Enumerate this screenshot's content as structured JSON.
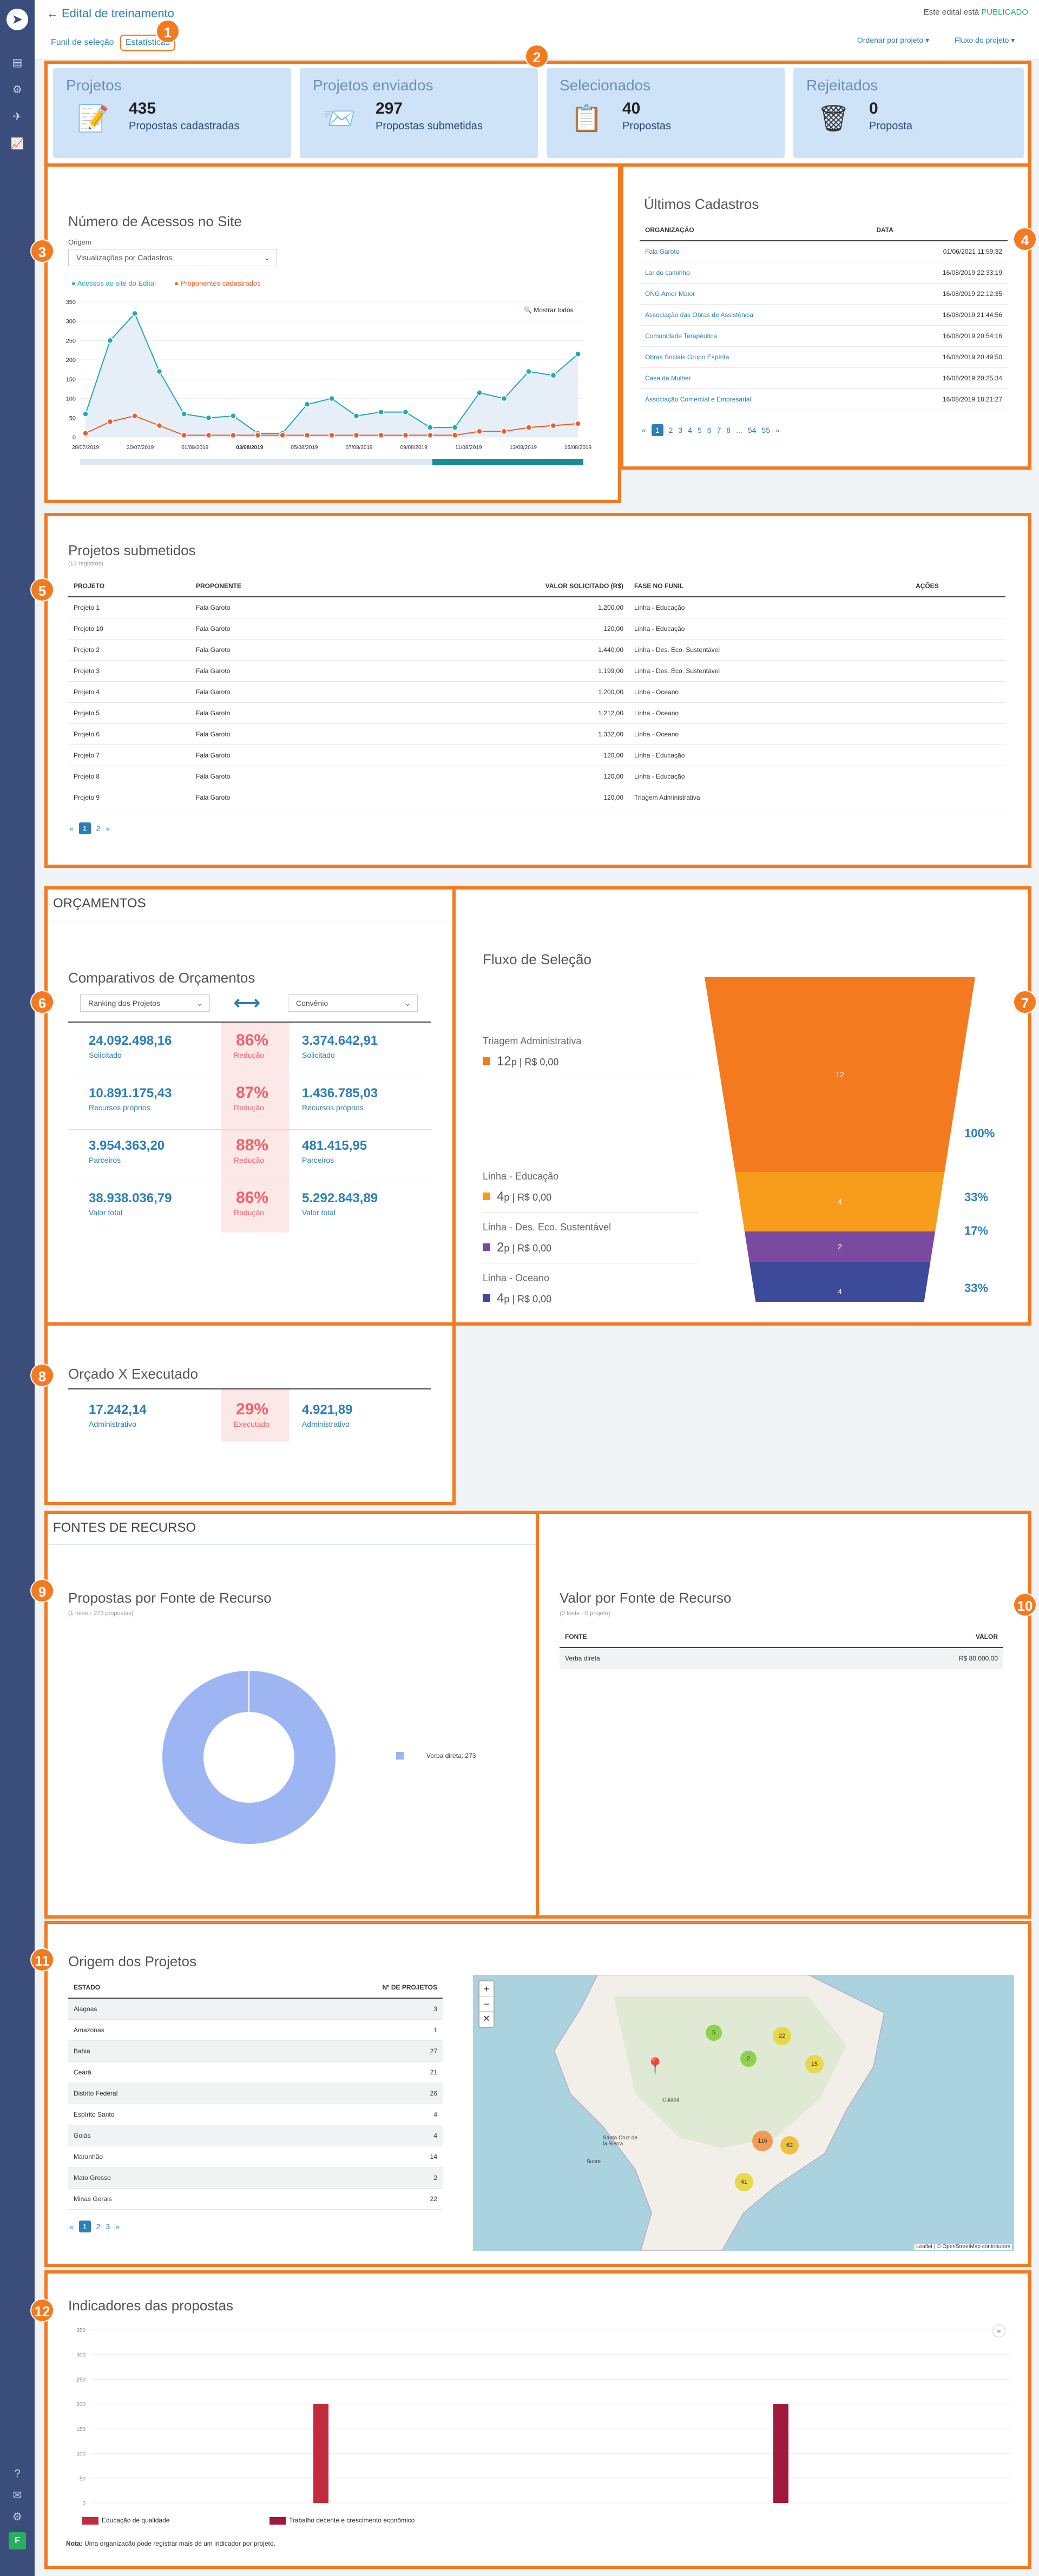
{
  "header": {
    "title": "Edital de treinamento",
    "status_prefix": "Este edital está",
    "status": "PUBLICADO",
    "tabs": [
      "Funil de seleção",
      "Estatísticas"
    ],
    "order_label": "Ordenar por projeto",
    "flow_label": "Fluxo do projeto"
  },
  "markers": [
    "1",
    "2",
    "3",
    "4",
    "5",
    "6",
    "7",
    "8",
    "9",
    "10",
    "11",
    "12"
  ],
  "cards": [
    {
      "title": "Projetos",
      "value": "435",
      "label": "Propostas cadastradas"
    },
    {
      "title": "Projetos enviados",
      "value": "297",
      "label": "Propostas submetidas"
    },
    {
      "title": "Selecionados",
      "value": "40",
      "label": "Propostas"
    },
    {
      "title": "Rejeitados",
      "value": "0",
      "label": "Proposta"
    }
  ],
  "access": {
    "title": "Número de Acessos no Site",
    "origin_label": "Origem",
    "origin_value": "Visualizações por Cadastros",
    "legend": [
      "Acessos ao site do Edital",
      "Proponentes cadastrados"
    ],
    "show_all": "Mostrar todos",
    "yticks": [
      "350",
      "300",
      "250",
      "200",
      "150",
      "100",
      "50",
      "0"
    ],
    "xticks": [
      "28/07/2019",
      "30/07/2019",
      "01/08/2019",
      "03/08/2019",
      "05/08/2019",
      "07/08/2019",
      "09/08/2019",
      "11/08/2019",
      "13/08/2019",
      "15/08/2019"
    ]
  },
  "chart_data": {
    "type": "line",
    "x_start": "28/07/2019",
    "x_end": "15/08/2019",
    "series": [
      {
        "name": "Acessos ao site do Edital",
        "values": [
          60,
          250,
          320,
          170,
          60,
          50,
          55,
          10,
          10,
          85,
          100,
          55,
          65,
          65,
          25,
          25,
          115,
          100,
          170,
          160,
          215
        ]
      },
      {
        "name": "Proponentes cadastrados",
        "values": [
          10,
          40,
          55,
          30,
          5,
          5,
          5,
          5,
          5,
          5,
          5,
          5,
          5,
          5,
          5,
          5,
          15,
          15,
          25,
          30,
          35
        ]
      }
    ],
    "ylim": [
      0,
      350
    ]
  },
  "ultimos": {
    "title": "Últimos Cadastros",
    "cols": [
      "ORGANIZAÇÃO",
      "DATA"
    ],
    "rows": [
      [
        "Fala Garoto",
        "01/06/2021 11:59:32"
      ],
      [
        "Lar do caminho",
        "16/08/2019 22:33:19"
      ],
      [
        "ONG Amor Maior",
        "16/08/2019 22:12:35"
      ],
      [
        "Associação das Obras de Assistência",
        "16/08/2019 21:44:56"
      ],
      [
        "Comunidade Terapêutica",
        "16/08/2019 20:54:16"
      ],
      [
        "Obras Sociais Grupo Espírita",
        "16/08/2019 20:49:50"
      ],
      [
        "Casa da Mulher",
        "16/08/2019 20:25:34"
      ],
      [
        "Associação Comercial e Empresarial",
        "16/08/2019 18:21:27"
      ]
    ],
    "pages": [
      "«",
      "1",
      "2",
      "3",
      "4",
      "5",
      "6",
      "7",
      "8",
      "...",
      "54",
      "55",
      "»"
    ]
  },
  "submetidos": {
    "title": "Projetos submetidos",
    "subtitle": "(13 registros)",
    "cols": [
      "PROJETO",
      "PROPONENTE",
      "VALOR SOLICITADO (R$)",
      "FASE NO FUNIL",
      "AÇÕES"
    ],
    "rows": [
      [
        "Projeto 1",
        "Fala Garoto",
        "1.200,00",
        "Linha - Educação"
      ],
      [
        "Projeto 10",
        "Fala Garoto",
        "120,00",
        "Linha - Educação"
      ],
      [
        "Projeto 2",
        "Fala Garoto",
        "1.440,00",
        "Linha - Des. Eco. Sustentável"
      ],
      [
        "Projeto 3",
        "Fala Garoto",
        "1.199,00",
        "Linha - Des. Eco. Sustentável"
      ],
      [
        "Projeto 4",
        "Fala Garoto",
        "1.200,00",
        "Linha - Oceano"
      ],
      [
        "Projeto 5",
        "Fala Garoto",
        "1.212,00",
        "Linha - Oceano"
      ],
      [
        "Projeto 6",
        "Fala Garoto",
        "1.332,00",
        "Linha - Oceano"
      ],
      [
        "Projeto 7",
        "Fala Garoto",
        "120,00",
        "Linha - Educação"
      ],
      [
        "Projeto 8",
        "Fala Garoto",
        "120,00",
        "Linha - Educação"
      ],
      [
        "Projeto 9",
        "Fala Garoto",
        "120,00",
        "Triagem Administrativa"
      ]
    ],
    "pages": [
      "«",
      "1",
      "2",
      "»"
    ]
  },
  "orcamentos": {
    "section": "ORÇAMENTOS",
    "title": "Comparativos de Orçamentos",
    "sel1": "Ranking dos Projetos",
    "sel2": "Convênio",
    "rows": [
      {
        "a": "24.092.498,16",
        "al": "Solicitado",
        "p": "86%",
        "pl": "Redução",
        "b": "3.374.642,91",
        "bl": "Solicitado"
      },
      {
        "a": "10.891.175,43",
        "al": "Recursos próprios",
        "p": "87%",
        "pl": "Redução",
        "b": "1.436.785,03",
        "bl": "Recursos próprios"
      },
      {
        "a": "3.954.363,20",
        "al": "Parceiros",
        "p": "88%",
        "pl": "Redução",
        "b": "481.415,95",
        "bl": "Parceiros"
      },
      {
        "a": "38.938.036,79",
        "al": "Valor total",
        "p": "86%",
        "pl": "Redução",
        "b": "5.292.843,89",
        "bl": "Valor total"
      }
    ]
  },
  "funil": {
    "title": "Fluxo de Seleção",
    "stages": [
      {
        "name": "Triagem Administrativa",
        "count": "12",
        "value": "R$ 0,00",
        "color": "#f47a20",
        "bar": "12",
        "pct": "100%"
      },
      {
        "name": "Linha - Educação",
        "count": "4",
        "value": "R$ 0,00",
        "color": "#f89c1c",
        "bar": "4",
        "pct": "33%"
      },
      {
        "name": "Linha - Des. Eco. Sustentável",
        "count": "2",
        "value": "R$ 0,00",
        "color": "#7a4aa0",
        "bar": "2",
        "pct": "17%"
      },
      {
        "name": "Linha - Oceano",
        "count": "4",
        "value": "R$ 0,00",
        "color": "#3d4a9a",
        "bar": "4",
        "pct": "33%"
      }
    ]
  },
  "orcado": {
    "title": "Orçado X Executado",
    "a": "17.242,14",
    "al": "Administrativo",
    "p": "29%",
    "pl": "Executado",
    "b": "4.921,89",
    "bl": "Administrativo"
  },
  "fontes": {
    "section": "FONTES DE RECURSO",
    "title": "Propostas por Fonte de Recurso",
    "subtitle": "(1 fonte - 273 propostas)",
    "legend": "Verba direta:",
    "legend_val": "273",
    "valor_title": "Valor por Fonte de Recurso",
    "valor_sub": "(0 fonte - 0 projeto)",
    "cols": [
      "FONTE",
      "VALOR"
    ],
    "rows": [
      [
        "Verba direta",
        "R$   80.000,00"
      ]
    ]
  },
  "origem": {
    "title": "Origem dos Projetos",
    "cols": [
      "ESTADO",
      "Nº DE PROJETOS"
    ],
    "rows": [
      [
        "Alagoas",
        "3"
      ],
      [
        "Amazonas",
        "1"
      ],
      [
        "Bahia",
        "27"
      ],
      [
        "Ceará",
        "21"
      ],
      [
        "Distrito Federal",
        "26"
      ],
      [
        "Espírito Santo",
        "4"
      ],
      [
        "Goiás",
        "4"
      ],
      [
        "Maranhão",
        "14"
      ],
      [
        "Mato Grosso",
        "2"
      ],
      [
        "Minas Gerais",
        "22"
      ]
    ],
    "pages": [
      "«",
      "1",
      "2",
      "3",
      "»"
    ],
    "zoom": [
      "+",
      "−",
      "✕"
    ],
    "clusters": [
      "5",
      "2",
      "22",
      "15",
      "116",
      "62",
      "41"
    ],
    "attribution": "Leaflet | © OpenStreetMap contributors",
    "map_labels": [
      "Cuiabá",
      "Santa Cruz de la Sierra",
      "Sucre"
    ]
  },
  "indicadores": {
    "title": "Indicadores das propostas",
    "yticks": [
      "350",
      "300",
      "250",
      "200",
      "150",
      "100",
      "50",
      "0"
    ],
    "legend": [
      "Educação de qualidade",
      "Trabalho decente e crescimento econômico"
    ],
    "note_b": "Nota:",
    "note": "Uma organização pode registrar mais de um indicador por projeto."
  },
  "indicadores_chart": {
    "type": "bar",
    "categories": [
      "Educação de qualidade",
      "Trabalho decente e crescimento econômico"
    ],
    "values": [
      200,
      200
    ],
    "ylim": [
      0,
      350
    ]
  }
}
